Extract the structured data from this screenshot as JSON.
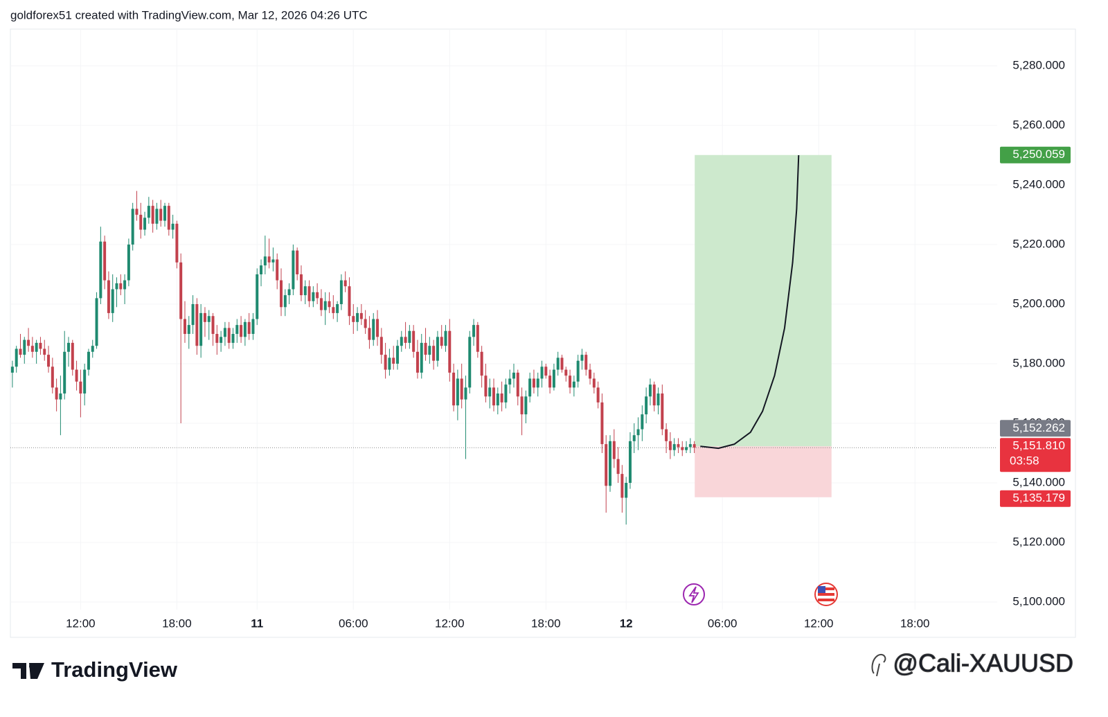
{
  "header": "goldforex51 created with TradingView.com, Mar 12, 2026 04:26 UTC",
  "footer": {
    "brand": "TradingView",
    "watermark": "@Cali-XAUUSD"
  },
  "chart_data": {
    "type": "candlestick",
    "up_color": "#1f8a70",
    "down_color": "#c2414d",
    "grid": true,
    "xlim": [
      -0.5,
      245.5
    ],
    "xticks": [
      {
        "value": 17,
        "label": "12:00"
      },
      {
        "value": 41,
        "label": "18:00"
      },
      {
        "value": 61,
        "label": "11"
      },
      {
        "value": 85,
        "label": "06:00"
      },
      {
        "value": 109,
        "label": "12:00"
      },
      {
        "value": 133,
        "label": "18:00"
      },
      {
        "value": 153,
        "label": "12"
      },
      {
        "value": 177,
        "label": "06:00"
      },
      {
        "value": 201,
        "label": "12:00"
      },
      {
        "value": 225,
        "label": "18:00"
      }
    ],
    "ylim": [
      5088.14,
      5292.33
    ],
    "yticks": [
      {
        "value": 5100,
        "label": "5,100.000"
      },
      {
        "value": 5120,
        "label": "5,120.000"
      },
      {
        "value": 5140,
        "label": "5,140.000"
      },
      {
        "value": 5160,
        "label": "5,160.000"
      },
      {
        "value": 5180,
        "label": "5,180.000"
      },
      {
        "value": 5200,
        "label": "5,200.000"
      },
      {
        "value": 5220,
        "label": "5,220.000"
      },
      {
        "value": 5240,
        "label": "5,240.000"
      },
      {
        "value": 5260,
        "label": "5,260.000"
      },
      {
        "value": 5280,
        "label": "5,280.000"
      }
    ],
    "candles": [
      [
        5177,
        5181,
        5172,
        5179
      ],
      [
        5179,
        5186,
        5177,
        5185
      ],
      [
        5185,
        5190,
        5182,
        5183
      ],
      [
        5183,
        5189,
        5180,
        5188
      ],
      [
        5188,
        5192,
        5184,
        5186
      ],
      [
        5186,
        5189,
        5182,
        5184
      ],
      [
        5184,
        5188,
        5180,
        5187
      ],
      [
        5187,
        5189,
        5183,
        5185
      ],
      [
        5185,
        5188,
        5181,
        5183
      ],
      [
        5183,
        5186,
        5177,
        5179
      ],
      [
        5179,
        5182,
        5170,
        5172
      ],
      [
        5172,
        5175,
        5164,
        5168
      ],
      [
        5168,
        5176,
        5156,
        5170
      ],
      [
        5170,
        5191,
        5168,
        5184
      ],
      [
        5184,
        5189,
        5179,
        5187
      ],
      [
        5187,
        5188,
        5176,
        5178
      ],
      [
        5178,
        5181,
        5171,
        5174
      ],
      [
        5174,
        5178,
        5162,
        5170
      ],
      [
        5170,
        5180,
        5166,
        5178
      ],
      [
        5178,
        5185,
        5176,
        5184
      ],
      [
        5184,
        5188,
        5182,
        5186
      ],
      [
        5186,
        5204,
        5185,
        5202
      ],
      [
        5202,
        5226,
        5200,
        5221
      ],
      [
        5221,
        5223,
        5205,
        5208
      ],
      [
        5208,
        5211,
        5195,
        5197
      ],
      [
        5197,
        5210,
        5194,
        5205
      ],
      [
        5205,
        5209,
        5199,
        5207
      ],
      [
        5207,
        5210,
        5203,
        5205
      ],
      [
        5205,
        5210,
        5200,
        5208
      ],
      [
        5208,
        5222,
        5206,
        5220
      ],
      [
        5220,
        5234,
        5218,
        5232
      ],
      [
        5232,
        5238,
        5228,
        5230
      ],
      [
        5230,
        5234,
        5222,
        5225
      ],
      [
        5225,
        5231,
        5223,
        5229
      ],
      [
        5229,
        5236,
        5227,
        5233
      ],
      [
        5233,
        5235,
        5224,
        5227
      ],
      [
        5227,
        5234,
        5225,
        5232
      ],
      [
        5232,
        5235,
        5226,
        5228
      ],
      [
        5228,
        5234,
        5226,
        5233
      ],
      [
        5233,
        5234,
        5223,
        5225
      ],
      [
        5225,
        5230,
        5222,
        5227
      ],
      [
        5227,
        5228,
        5212,
        5214
      ],
      [
        5214,
        5217,
        5160,
        5195
      ],
      [
        5195,
        5201,
        5187,
        5190
      ],
      [
        5190,
        5196,
        5185,
        5193
      ],
      [
        5193,
        5203,
        5190,
        5200
      ],
      [
        5200,
        5202,
        5183,
        5186
      ],
      [
        5186,
        5200,
        5182,
        5197
      ],
      [
        5197,
        5199,
        5189,
        5194
      ],
      [
        5194,
        5198,
        5188,
        5196
      ],
      [
        5196,
        5197,
        5186,
        5190
      ],
      [
        5190,
        5193,
        5183,
        5187
      ],
      [
        5187,
        5191,
        5184,
        5189
      ],
      [
        5189,
        5194,
        5186,
        5192
      ],
      [
        5192,
        5194,
        5185,
        5187
      ],
      [
        5187,
        5192,
        5185,
        5190
      ],
      [
        5190,
        5195,
        5187,
        5193
      ],
      [
        5193,
        5196,
        5187,
        5189
      ],
      [
        5189,
        5195,
        5186,
        5194
      ],
      [
        5194,
        5197,
        5188,
        5190
      ],
      [
        5190,
        5197,
        5188,
        5195
      ],
      [
        5195,
        5212,
        5193,
        5210
      ],
      [
        5210,
        5215,
        5206,
        5213
      ],
      [
        5213,
        5223,
        5210,
        5216
      ],
      [
        5216,
        5222,
        5212,
        5214
      ],
      [
        5214,
        5219,
        5211,
        5215
      ],
      [
        5215,
        5217,
        5205,
        5208
      ],
      [
        5208,
        5212,
        5196,
        5199
      ],
      [
        5199,
        5205,
        5196,
        5203
      ],
      [
        5203,
        5207,
        5200,
        5205
      ],
      [
        5205,
        5220,
        5203,
        5218
      ],
      [
        5218,
        5219,
        5208,
        5210
      ],
      [
        5210,
        5213,
        5201,
        5203
      ],
      [
        5203,
        5208,
        5200,
        5206
      ],
      [
        5206,
        5208,
        5199,
        5201
      ],
      [
        5201,
        5206,
        5199,
        5204
      ],
      [
        5204,
        5207,
        5200,
        5202
      ],
      [
        5202,
        5205,
        5196,
        5198
      ],
      [
        5198,
        5204,
        5193,
        5201
      ],
      [
        5201,
        5204,
        5197,
        5199
      ],
      [
        5199,
        5203,
        5195,
        5197
      ],
      [
        5197,
        5201,
        5194,
        5200
      ],
      [
        5200,
        5210,
        5198,
        5208
      ],
      [
        5208,
        5211,
        5204,
        5206
      ],
      [
        5206,
        5209,
        5193,
        5196
      ],
      [
        5196,
        5200,
        5190,
        5194
      ],
      [
        5194,
        5199,
        5191,
        5197
      ],
      [
        5197,
        5200,
        5193,
        5195
      ],
      [
        5195,
        5198,
        5190,
        5192
      ],
      [
        5192,
        5196,
        5185,
        5188
      ],
      [
        5188,
        5197,
        5186,
        5195
      ],
      [
        5195,
        5198,
        5186,
        5189
      ],
      [
        5189,
        5192,
        5180,
        5183
      ],
      [
        5183,
        5187,
        5175,
        5178
      ],
      [
        5178,
        5185,
        5176,
        5182
      ],
      [
        5182,
        5186,
        5178,
        5180
      ],
      [
        5180,
        5188,
        5178,
        5186
      ],
      [
        5186,
        5191,
        5184,
        5189
      ],
      [
        5189,
        5194,
        5185,
        5187
      ],
      [
        5187,
        5193,
        5185,
        5191
      ],
      [
        5191,
        5193,
        5182,
        5184
      ],
      [
        5184,
        5188,
        5175,
        5177
      ],
      [
        5177,
        5190,
        5175,
        5187
      ],
      [
        5187,
        5192,
        5181,
        5183
      ],
      [
        5183,
        5189,
        5180,
        5186
      ],
      [
        5186,
        5188,
        5178,
        5181
      ],
      [
        5181,
        5191,
        5179,
        5189
      ],
      [
        5189,
        5193,
        5185,
        5186
      ],
      [
        5186,
        5193,
        5184,
        5191
      ],
      [
        5191,
        5195,
        5174,
        5177
      ],
      [
        5177,
        5180,
        5164,
        5166
      ],
      [
        5166,
        5178,
        5161,
        5175
      ],
      [
        5175,
        5180,
        5165,
        5168
      ],
      [
        5168,
        5176,
        5148,
        5172
      ],
      [
        5172,
        5191,
        5170,
        5189
      ],
      [
        5189,
        5195,
        5186,
        5193
      ],
      [
        5193,
        5194,
        5182,
        5184
      ],
      [
        5184,
        5186,
        5172,
        5176
      ],
      [
        5176,
        5180,
        5167,
        5169
      ],
      [
        5169,
        5175,
        5165,
        5172
      ],
      [
        5172,
        5175,
        5164,
        5166
      ],
      [
        5166,
        5172,
        5163,
        5170
      ],
      [
        5170,
        5174,
        5164,
        5167
      ],
      [
        5167,
        5175,
        5165,
        5173
      ],
      [
        5173,
        5178,
        5170,
        5175
      ],
      [
        5175,
        5180,
        5172,
        5177
      ],
      [
        5177,
        5178,
        5166,
        5169
      ],
      [
        5169,
        5172,
        5156,
        5163
      ],
      [
        5163,
        5171,
        5160,
        5169
      ],
      [
        5169,
        5177,
        5167,
        5175
      ],
      [
        5175,
        5178,
        5170,
        5172
      ],
      [
        5172,
        5177,
        5169,
        5175
      ],
      [
        5175,
        5181,
        5172,
        5179
      ],
      [
        5179,
        5180,
        5175,
        5176
      ],
      [
        5176,
        5178,
        5170,
        5172
      ],
      [
        5172,
        5180,
        5171,
        5178
      ],
      [
        5178,
        5184,
        5176,
        5182
      ],
      [
        5182,
        5183,
        5177,
        5178
      ],
      [
        5178,
        5179,
        5174,
        5176
      ],
      [
        5176,
        5178,
        5170,
        5172
      ],
      [
        5172,
        5176,
        5169,
        5174
      ],
      [
        5174,
        5183,
        5172,
        5181
      ],
      [
        5181,
        5185,
        5178,
        5183
      ],
      [
        5183,
        5184,
        5176,
        5178
      ],
      [
        5178,
        5180,
        5173,
        5175
      ],
      [
        5175,
        5177,
        5170,
        5172
      ],
      [
        5172,
        5174,
        5165,
        5167
      ],
      [
        5167,
        5170,
        5150,
        5153
      ],
      [
        5153,
        5156,
        5130,
        5139
      ],
      [
        5139,
        5156,
        5137,
        5154
      ],
      [
        5154,
        5158,
        5145,
        5148
      ],
      [
        5148,
        5152,
        5140,
        5143
      ],
      [
        5143,
        5146,
        5130,
        5135
      ],
      [
        5135,
        5142,
        5126,
        5140
      ],
      [
        5140,
        5157,
        5138,
        5154
      ],
      [
        5154,
        5160,
        5150,
        5156
      ],
      [
        5156,
        5162,
        5151,
        5158
      ],
      [
        5158,
        5166,
        5154,
        5163
      ],
      [
        5163,
        5172,
        5160,
        5169
      ],
      [
        5169,
        5175,
        5166,
        5173
      ],
      [
        5173,
        5174,
        5164,
        5166
      ],
      [
        5166,
        5172,
        5163,
        5170
      ],
      [
        5170,
        5173,
        5156,
        5158
      ],
      [
        5158,
        5160,
        5150,
        5154
      ],
      [
        5154,
        5157,
        5148,
        5151
      ],
      [
        5151,
        5155,
        5149,
        5153
      ],
      [
        5153,
        5155,
        5150,
        5152
      ],
      [
        5152,
        5154,
        5149,
        5151
      ],
      [
        5151,
        5154,
        5150,
        5152
      ],
      [
        5152,
        5155,
        5150,
        5153
      ],
      [
        5153,
        5154,
        5150,
        5151.81
      ]
    ],
    "position": {
      "start": 170.1,
      "end": 204.2,
      "entry": {
        "value": 5152.262,
        "label": "5,152.262"
      },
      "target": {
        "value": 5250.059,
        "label": "5,250.059"
      },
      "stop": {
        "value": 5135.179,
        "label": "5,135.179"
      }
    },
    "projection": {
      "x": [
        171.5,
        176,
        180,
        184,
        187,
        190,
        192.5,
        194.5,
        195.5,
        196
      ],
      "y": [
        5152.26,
        5151.6,
        5153,
        5157,
        5164,
        5176,
        5192,
        5214,
        5232,
        5250
      ]
    },
    "last_price": {
      "value": 5151.81,
      "label": "5,151.810"
    },
    "countdown": "03:58"
  }
}
